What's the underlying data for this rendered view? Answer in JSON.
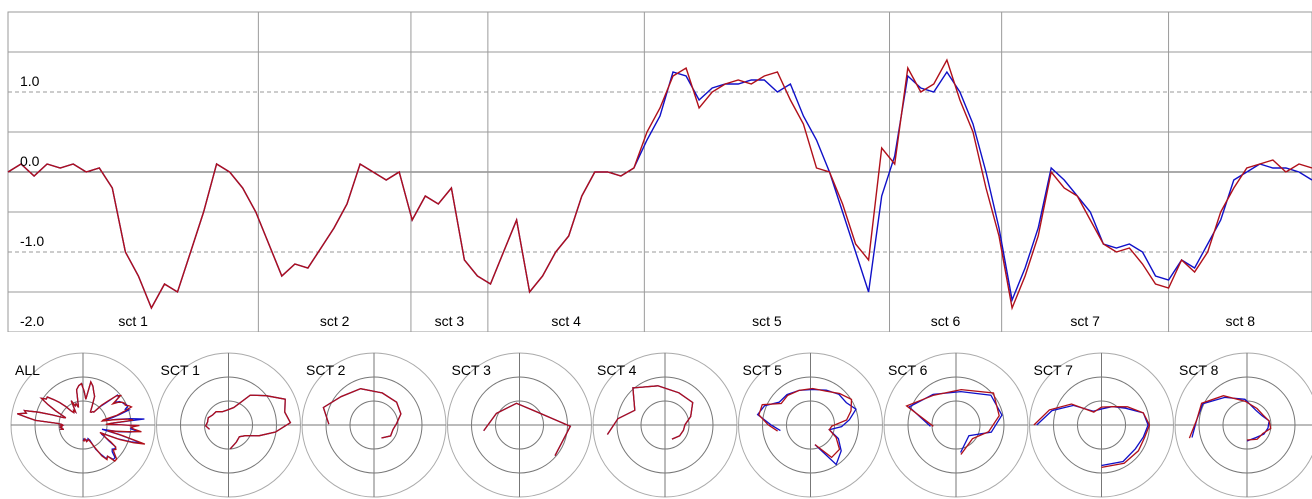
{
  "chart_data": {
    "type": "line",
    "yticks": [
      {
        "value": 1.0,
        "label": "1.0"
      },
      {
        "value": 0.0,
        "label": "0.0"
      },
      {
        "value": -1.0,
        "label": "-1.0"
      },
      {
        "value": -2.0,
        "label": "-2.0"
      }
    ],
    "ylim": [
      -2.0,
      2.0
    ],
    "xlim": [
      0,
      100
    ],
    "grid": true,
    "colors": {
      "red": "#b0101a",
      "blue": "#1010c8",
      "grid": "#9a9a9a",
      "zero": "#555555"
    },
    "sectors": [
      {
        "label": "sct 1",
        "start": 0,
        "end": 19.2
      },
      {
        "label": "sct 2",
        "start": 19.2,
        "end": 30.9
      },
      {
        "label": "sct 3",
        "start": 30.9,
        "end": 36.8
      },
      {
        "label": "sct 4",
        "start": 36.8,
        "end": 48.8
      },
      {
        "label": "sct 5",
        "start": 48.8,
        "end": 67.6
      },
      {
        "label": "sct 6",
        "start": 67.6,
        "end": 76.2
      },
      {
        "label": "sct 7",
        "start": 76.2,
        "end": 89.0
      },
      {
        "label": "sct 8",
        "start": 89.0,
        "end": 100
      }
    ],
    "series": [
      {
        "color": "red",
        "x": [
          0,
          1,
          2,
          3,
          4,
          5,
          6,
          7,
          8,
          9,
          10,
          11,
          12,
          13,
          14,
          15,
          16,
          17,
          18,
          19,
          20,
          21,
          22,
          23,
          24,
          25,
          26,
          27,
          28,
          29,
          30,
          31,
          32,
          33,
          34,
          35,
          36,
          37,
          38,
          39,
          40,
          41,
          42,
          43,
          44,
          45,
          46,
          47,
          48,
          49,
          50,
          51,
          52,
          53,
          54,
          55,
          56,
          57,
          58,
          59,
          60,
          61,
          62,
          63,
          64,
          65,
          66,
          67,
          68,
          69,
          70,
          71,
          72,
          73,
          74,
          75,
          76,
          77,
          78,
          79,
          80,
          81,
          82,
          83,
          84,
          85,
          86,
          87,
          88,
          89,
          90,
          91,
          92,
          93,
          94,
          95,
          96,
          97,
          98,
          99,
          100
        ],
        "y": [
          0.0,
          0.1,
          -0.05,
          0.1,
          0.05,
          0.1,
          0.0,
          0.05,
          -0.2,
          -1.0,
          -1.3,
          -1.7,
          -1.4,
          -1.5,
          -1.0,
          -0.5,
          0.1,
          0.0,
          -0.2,
          -0.5,
          -0.9,
          -1.3,
          -1.15,
          -1.2,
          -0.95,
          -0.7,
          -0.4,
          0.1,
          0.0,
          -0.1,
          0.0,
          -0.6,
          -0.3,
          -0.4,
          -0.2,
          -1.1,
          -1.3,
          -1.4,
          -1.0,
          -0.6,
          -1.5,
          -1.3,
          -1.0,
          -0.8,
          -0.3,
          0.0,
          0.0,
          -0.05,
          0.05,
          0.5,
          0.8,
          1.2,
          1.3,
          0.8,
          1.0,
          1.1,
          1.15,
          1.1,
          1.2,
          1.25,
          0.9,
          0.6,
          0.05,
          0.0,
          -0.4,
          -0.9,
          -1.1,
          0.3,
          0.1,
          1.3,
          1.0,
          1.1,
          1.4,
          0.9,
          0.5,
          -0.2,
          -0.8,
          -1.7,
          -1.3,
          -0.8,
          0.0,
          -0.2,
          -0.3,
          -0.6,
          -0.9,
          -1.0,
          -0.95,
          -1.15,
          -1.4,
          -1.45,
          -1.1,
          -1.25,
          -1.0,
          -0.5,
          -0.2,
          0.05,
          0.1,
          0.15,
          0.0,
          0.1,
          0.05
        ]
      },
      {
        "color": "blue",
        "x": [
          0,
          1,
          2,
          3,
          4,
          5,
          6,
          7,
          8,
          9,
          10,
          11,
          12,
          13,
          14,
          15,
          16,
          17,
          18,
          19,
          20,
          21,
          22,
          23,
          24,
          25,
          26,
          27,
          28,
          29,
          30,
          31,
          32,
          33,
          34,
          35,
          36,
          37,
          38,
          39,
          40,
          41,
          42,
          43,
          44,
          45,
          46,
          47,
          48,
          49,
          50,
          51,
          52,
          53,
          54,
          55,
          56,
          57,
          58,
          59,
          60,
          61,
          62,
          63,
          64,
          65,
          66,
          67,
          68,
          69,
          70,
          71,
          72,
          73,
          74,
          75,
          76,
          77,
          78,
          79,
          80,
          81,
          82,
          83,
          84,
          85,
          86,
          87,
          88,
          89,
          90,
          91,
          92,
          93,
          94,
          95,
          96,
          97,
          98,
          99,
          100
        ],
        "y": [
          0.0,
          0.1,
          -0.05,
          0.1,
          0.05,
          0.1,
          0.0,
          0.05,
          -0.2,
          -1.0,
          -1.3,
          -1.7,
          -1.4,
          -1.5,
          -1.0,
          -0.5,
          0.1,
          0.0,
          -0.2,
          -0.5,
          -0.9,
          -1.3,
          -1.15,
          -1.2,
          -0.95,
          -0.7,
          -0.4,
          0.1,
          0.0,
          -0.1,
          0.0,
          -0.6,
          -0.3,
          -0.4,
          -0.2,
          -1.1,
          -1.3,
          -1.4,
          -1.0,
          -0.6,
          -1.5,
          -1.3,
          -1.0,
          -0.8,
          -0.3,
          0.0,
          0.0,
          -0.05,
          0.05,
          0.4,
          0.7,
          1.25,
          1.2,
          0.9,
          1.05,
          1.1,
          1.1,
          1.15,
          1.15,
          1.0,
          1.1,
          0.7,
          0.4,
          0.0,
          -0.5,
          -1.0,
          -1.5,
          -0.3,
          0.2,
          1.2,
          1.05,
          1.0,
          1.25,
          1.0,
          0.6,
          0.0,
          -0.7,
          -1.6,
          -1.2,
          -0.7,
          0.05,
          -0.1,
          -0.3,
          -0.5,
          -0.9,
          -0.95,
          -0.9,
          -1.0,
          -1.3,
          -1.35,
          -1.1,
          -1.2,
          -0.9,
          -0.6,
          -0.1,
          0.0,
          0.1,
          0.05,
          0.05,
          0.0,
          -0.1
        ]
      }
    ],
    "polar_labels": [
      "ALL",
      "SCT 1",
      "SCT 2",
      "SCT 3",
      "SCT 4",
      "SCT 5",
      "SCT 6",
      "SCT 7",
      "SCT 8"
    ]
  }
}
